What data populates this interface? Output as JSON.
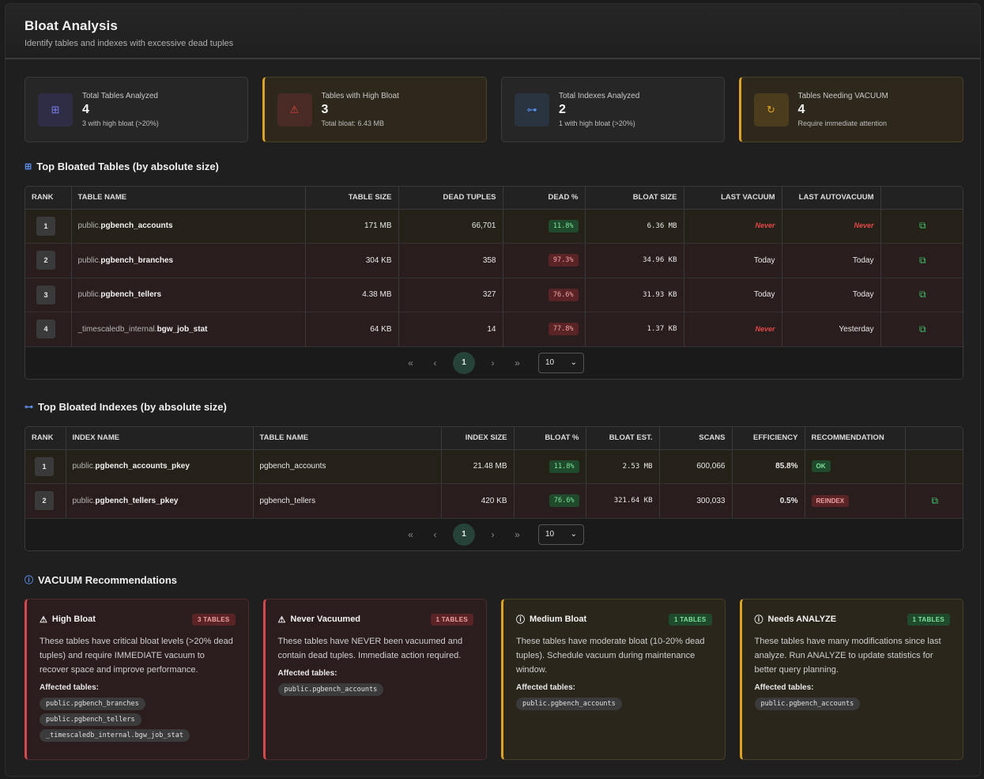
{
  "header": {
    "title": "Bloat Analysis",
    "subtitle": "Identify tables and indexes with excessive dead tuples"
  },
  "cards": [
    {
      "label": "Total Tables Analyzed",
      "value": "4",
      "note": "3 with high bloat (>20%)",
      "icon": "grid-icon",
      "glyph": "⊞",
      "color": "#7a7cf0",
      "bg": "#2f2d45"
    },
    {
      "label": "Tables with High Bloat",
      "value": "3",
      "note": "Total bloat: 6.43 MB",
      "icon": "warning-icon",
      "glyph": "⚠",
      "color": "#e0473f",
      "bg": "#4a2a24"
    },
    {
      "label": "Total Indexes Analyzed",
      "value": "2",
      "note": "1 with high bloat (>20%)",
      "icon": "hierarchy-icon",
      "glyph": "⊶",
      "color": "#5b8ef0",
      "bg": "#2a3340"
    },
    {
      "label": "Tables Needing VACUUM",
      "value": "4",
      "note": "Require immediate attention",
      "icon": "refresh-icon",
      "glyph": "↻",
      "color": "#e0a31f",
      "bg": "#4a3c1c"
    }
  ],
  "tables_section": {
    "title": "Top Bloated Tables (by absolute size)",
    "columns": [
      "RANK",
      "TABLE NAME",
      "TABLE SIZE",
      "DEAD TUPLES",
      "DEAD %",
      "BLOAT SIZE",
      "LAST VACUUM",
      "LAST AUTOVACUUM",
      ""
    ],
    "rows": [
      {
        "rank": "1",
        "schema": "public.",
        "name": "pgbench_accounts",
        "size": "171 MB",
        "dead": "66,701",
        "pct": "11.8%",
        "pct_level": "green",
        "bloat": "6.36 MB",
        "vacuum": "Never",
        "autovacuum": "Never",
        "level": "warn"
      },
      {
        "rank": "2",
        "schema": "public.",
        "name": "pgbench_branches",
        "size": "304 KB",
        "dead": "358",
        "pct": "97.3%",
        "pct_level": "red",
        "bloat": "34.96 KB",
        "vacuum": "Today",
        "autovacuum": "Today",
        "level": "crit"
      },
      {
        "rank": "3",
        "schema": "public.",
        "name": "pgbench_tellers",
        "size": "4.38 MB",
        "dead": "327",
        "pct": "76.6%",
        "pct_level": "red",
        "bloat": "31.93 KB",
        "vacuum": "Today",
        "autovacuum": "Today",
        "level": "crit"
      },
      {
        "rank": "4",
        "schema": "_timescaledb_internal.",
        "name": "bgw_job_stat",
        "size": "64 KB",
        "dead": "14",
        "pct": "77.8%",
        "pct_level": "red",
        "bloat": "1.37 KB",
        "vacuum": "Never",
        "autovacuum": "Yesterday",
        "level": "crit"
      }
    ],
    "pager": {
      "first": "«",
      "prev": "‹",
      "page": "1",
      "next": "›",
      "last": "»",
      "page_size": "10"
    }
  },
  "indexes_section": {
    "title": "Top Bloated Indexes (by absolute size)",
    "columns": [
      "RANK",
      "INDEX NAME",
      "TABLE NAME",
      "INDEX SIZE",
      "BLOAT %",
      "BLOAT EST.",
      "SCANS",
      "EFFICIENCY",
      "RECOMMENDATION",
      ""
    ],
    "rows": [
      {
        "rank": "1",
        "schema": "public.",
        "name": "pgbench_accounts_pkey",
        "table": "pgbench_accounts",
        "size": "21.48 MB",
        "pct": "11.8%",
        "est": "2.53 MB",
        "scans": "600,066",
        "eff": "85.8%",
        "rec": "OK",
        "level": "warn"
      },
      {
        "rank": "2",
        "schema": "public.",
        "name": "pgbench_tellers_pkey",
        "table": "pgbench_tellers",
        "size": "420 KB",
        "pct": "76.6%",
        "est": "321.64 KB",
        "scans": "300,033",
        "eff": "0.5%",
        "rec": "REINDEX",
        "level": "crit"
      }
    ],
    "pager": {
      "first": "«",
      "prev": "‹",
      "page": "1",
      "next": "›",
      "last": "»",
      "page_size": "10"
    }
  },
  "recommendations": {
    "title": "VACUUM Recommendations",
    "affected_label": "Affected tables:",
    "items": [
      {
        "title": "High Bloat",
        "icon": "warning-icon",
        "glyph": "⚠",
        "count": "3 TABLES",
        "tone": "crit",
        "desc": "These tables have critical bloat levels (>20% dead tuples) and require IMMEDIATE vacuum to recover space and improve performance.",
        "tables": [
          "public.pgbench_branches",
          "public.pgbench_tellers",
          "_timescaledb_internal.bgw_job_stat"
        ]
      },
      {
        "title": "Never Vacuumed",
        "icon": "warning-icon",
        "glyph": "⚠",
        "count": "1 TABLES",
        "tone": "crit",
        "desc": "These tables have NEVER been vacuumed and contain dead tuples. Immediate action required.",
        "tables": [
          "public.pgbench_accounts"
        ]
      },
      {
        "title": "Medium Bloat",
        "icon": "info-icon",
        "glyph": "ⓘ",
        "count": "1 TABLES",
        "tone": "med",
        "desc": "These tables have moderate bloat (10-20% dead tuples). Schedule vacuum during maintenance window.",
        "tables": [
          "public.pgbench_accounts"
        ]
      },
      {
        "title": "Needs ANALYZE",
        "icon": "info-icon",
        "glyph": "ⓘ",
        "count": "1 TABLES",
        "tone": "med",
        "desc": "These tables have many modifications since last analyze. Run ANALYZE to update statistics for better query planning.",
        "tables": [
          "public.pgbench_accounts"
        ]
      }
    ]
  }
}
